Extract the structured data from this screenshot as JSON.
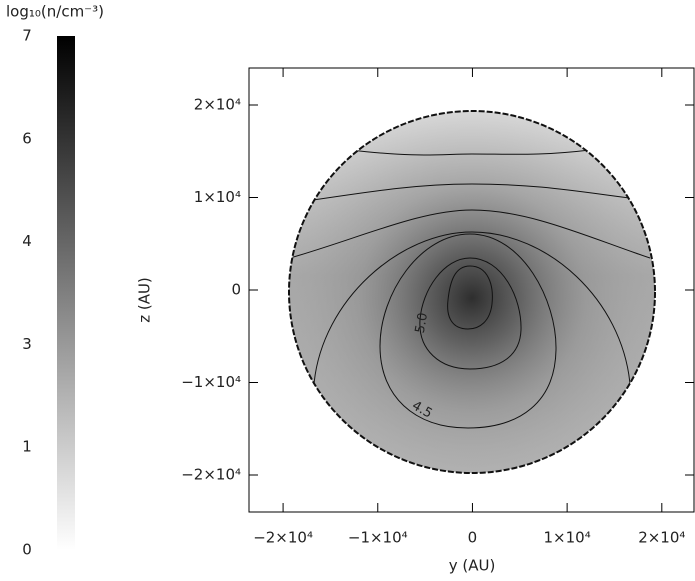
{
  "chart_data": {
    "type": "density-map",
    "colorbar_label": "log₁₀(n/cm⁻³)",
    "colorbar_lim": [
      0,
      7
    ],
    "colorbar_ticks": [
      {
        "value": 0,
        "label": "0"
      },
      {
        "value": 1.4,
        "label": "1"
      },
      {
        "value": 2.8,
        "label": "3"
      },
      {
        "value": 4.2,
        "label": "4"
      },
      {
        "value": 5.6,
        "label": "6"
      },
      {
        "value": 7,
        "label": "7"
      }
    ],
    "xlabel": "y (AU)",
    "ylabel": "z (AU)",
    "xlim": [
      -23600,
      23400
    ],
    "ylim": [
      -24000,
      24000
    ],
    "xticks": [
      {
        "value": -20000,
        "label": "−2×10⁴"
      },
      {
        "value": -10000,
        "label": "−1×10⁴"
      },
      0,
      {
        "value": 10000,
        "label": "1×10⁴"
      },
      {
        "value": 20000,
        "label": "2×10⁴"
      }
    ],
    "yticks": [
      {
        "value": -20000,
        "label": "−2×10⁴"
      },
      {
        "value": -10000,
        "label": "−1×10⁴"
      },
      0,
      {
        "value": 10000,
        "label": "1×10⁴"
      },
      {
        "value": 20000,
        "label": "2×10⁴"
      }
    ],
    "contour_levels": [
      5.5,
      5.0,
      4.5,
      4.0,
      3.5,
      3.0,
      2.5
    ],
    "contour_labels": [
      null,
      "5.0",
      "4.5",
      null,
      null,
      null,
      null
    ]
  }
}
